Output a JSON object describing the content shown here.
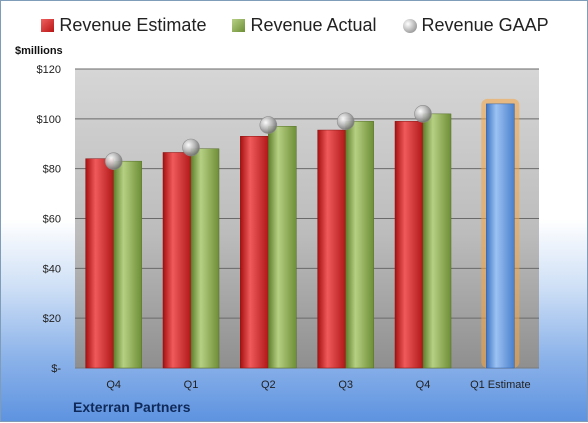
{
  "chart_data": {
    "type": "bar",
    "ylabel": "$millions",
    "footer": "Exterran Partners",
    "categories": [
      "Q4",
      "Q1",
      "Q2",
      "Q3",
      "Q4",
      "Q1 Estimate"
    ],
    "series": [
      {
        "name": "Revenue Estimate",
        "values": [
          84,
          86.5,
          93,
          95.5,
          99,
          null
        ],
        "color": "#d42a2a"
      },
      {
        "name": "Revenue Actual",
        "values": [
          83,
          88,
          97,
          99,
          102,
          null
        ],
        "color": "#86a84a"
      },
      {
        "name": "Revenue GAAP",
        "values": [
          83,
          88.5,
          97.5,
          99,
          102,
          null
        ],
        "color": "#b0b0b0"
      }
    ],
    "projection": {
      "category": "Q1 Estimate",
      "value": 106,
      "color": "#6a9fe0"
    },
    "ylim": [
      0,
      120
    ],
    "yticks": [
      0,
      20,
      40,
      60,
      80,
      100,
      120
    ],
    "ytick_labels": [
      "$-",
      "$20",
      "$40",
      "$60",
      "$80",
      "$100",
      "$120"
    ],
    "grid": true,
    "legend_position": "top"
  }
}
